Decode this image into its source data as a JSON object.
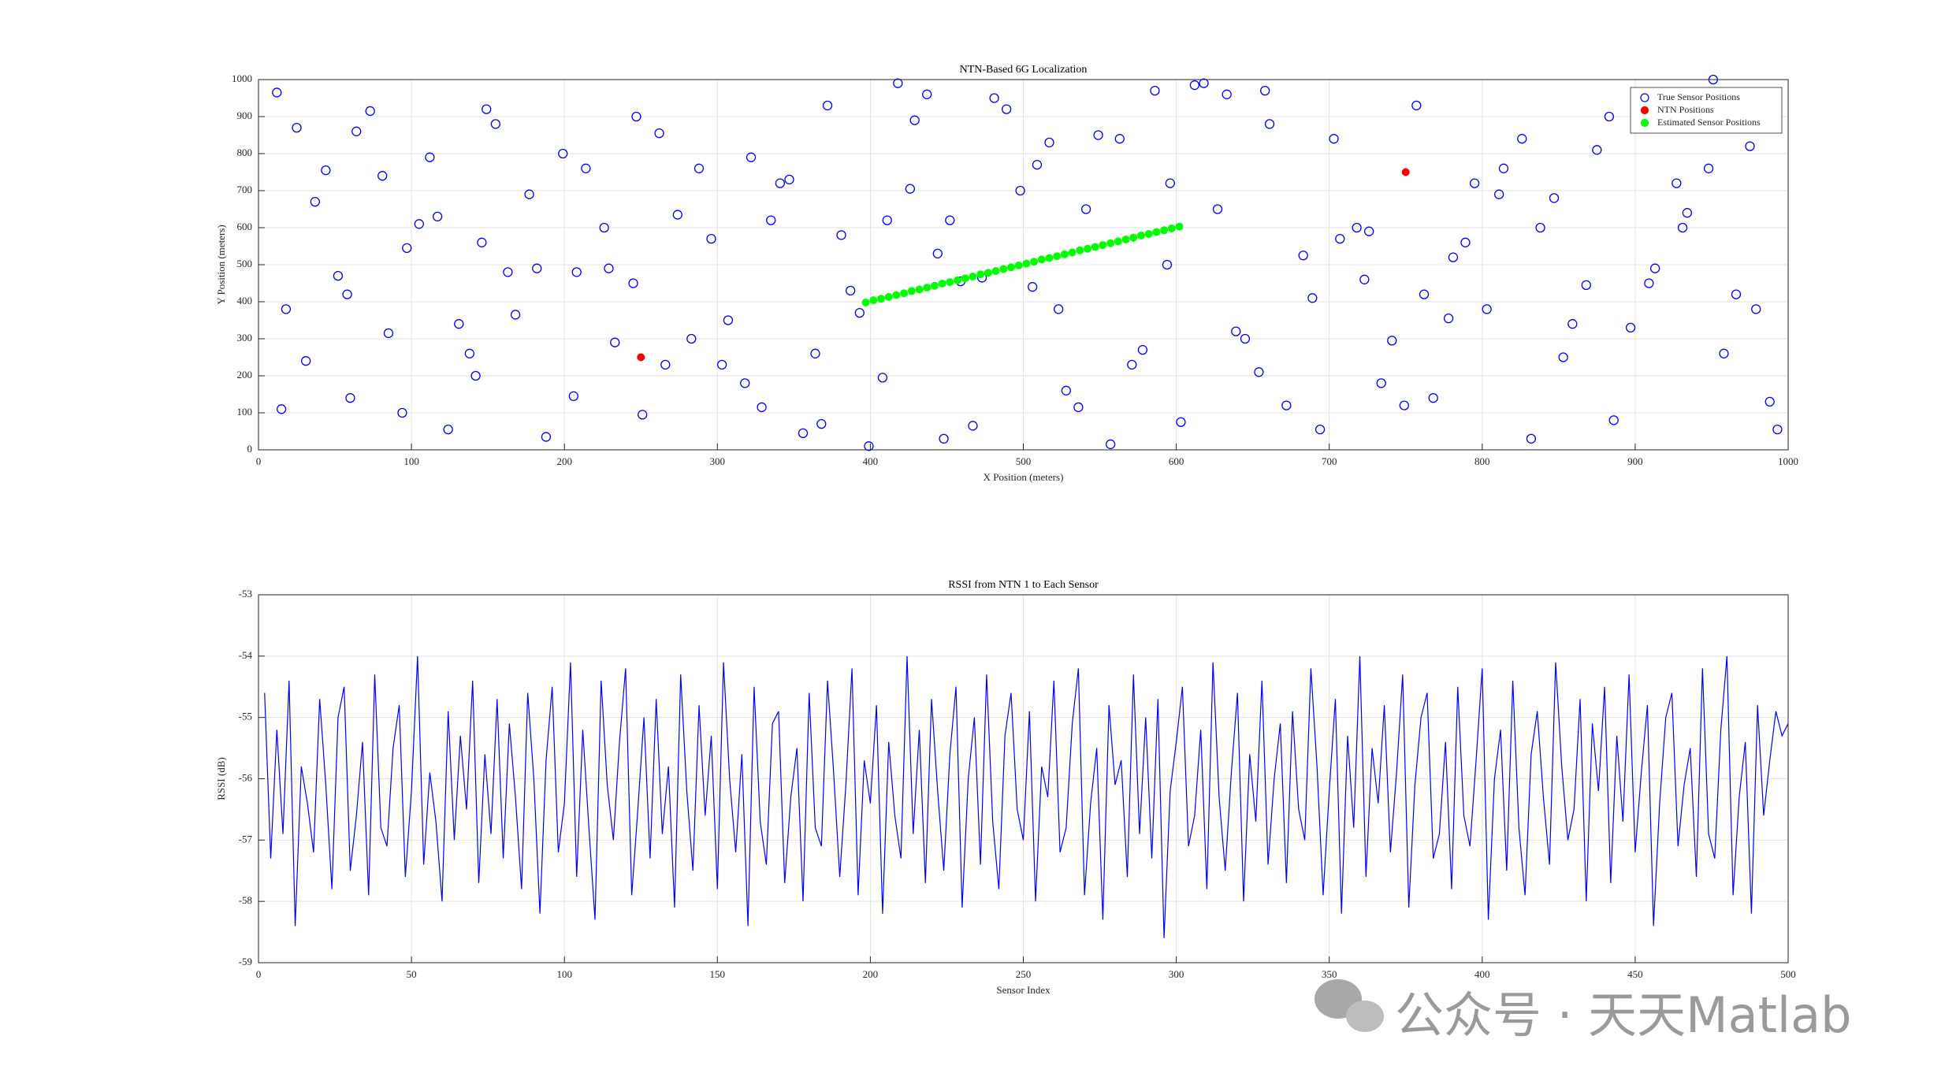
{
  "chart_data": [
    {
      "type": "scatter",
      "title": "NTN-Based 6G Localization",
      "xlabel": "X Position (meters)",
      "ylabel": "Y Position (meters)",
      "xlim": [
        0,
        1000
      ],
      "ylim": [
        0,
        1000
      ],
      "xticks": [
        0,
        100,
        200,
        300,
        400,
        500,
        600,
        700,
        800,
        900,
        1000
      ],
      "yticks": [
        0,
        100,
        200,
        300,
        400,
        500,
        600,
        700,
        800,
        900,
        1000
      ],
      "grid": true,
      "legend": "northeast",
      "series": [
        {
          "name": "True Sensor Positions",
          "color": "#0000ff",
          "marker": "open",
          "x": [
            12,
            18,
            25,
            31,
            44,
            52,
            60,
            73,
            85,
            97,
            105,
            112,
            124,
            138,
            146,
            155,
            163,
            177,
            188,
            199,
            208,
            214,
            226,
            233,
            245,
            251,
            262,
            274,
            283,
            296,
            303,
            318,
            322,
            335,
            341,
            356,
            364,
            372,
            381,
            393,
            399,
            411,
            418,
            426,
            437,
            448,
            452,
            467,
            473,
            489,
            498,
            506,
            517,
            523,
            536,
            541,
            557,
            563,
            571,
            586,
            594,
            603,
            612,
            627,
            633,
            645,
            654,
            661,
            672,
            689,
            694,
            703,
            718,
            726,
            734,
            749,
            757,
            762,
            778,
            781,
            795,
            803,
            811,
            826,
            832,
            847,
            853,
            868,
            875,
            883,
            897,
            904,
            913,
            927,
            931,
            948,
            951,
            966,
            975,
            988,
            15,
            37,
            58,
            81,
            94,
            117,
            131,
            149,
            168,
            182,
            206,
            229,
            247,
            266,
            288,
            307,
            329,
            347,
            368,
            387,
            408,
            429,
            444,
            459,
            481,
            509,
            528,
            549,
            578,
            596,
            618,
            639,
            658,
            683,
            707,
            723,
            741,
            768,
            789,
            814,
            838,
            859,
            886,
            909,
            934,
            958,
            979,
            993,
            64,
            142
          ],
          "values": [
            965,
            380,
            870,
            240,
            755,
            470,
            140,
            915,
            315,
            545,
            610,
            790,
            55,
            260,
            560,
            880,
            480,
            690,
            35,
            800,
            480,
            760,
            600,
            290,
            450,
            95,
            855,
            635,
            300,
            570,
            230,
            180,
            790,
            620,
            720,
            45,
            260,
            930,
            580,
            370,
            10,
            620,
            990,
            705,
            960,
            30,
            620,
            65,
            465,
            920,
            700,
            440,
            830,
            380,
            115,
            650,
            15,
            840,
            230,
            970,
            500,
            75,
            985,
            650,
            960,
            300,
            210,
            880,
            120,
            410,
            55,
            840,
            600,
            590,
            180,
            120,
            930,
            420,
            355,
            520,
            720,
            380,
            690,
            840,
            30,
            680,
            250,
            445,
            810,
            900,
            330,
            940,
            490,
            720,
            600,
            760,
            1000,
            420,
            820,
            130,
            110,
            670,
            420,
            740,
            100,
            630,
            340,
            920,
            365,
            490,
            145,
            490,
            900,
            230,
            760,
            350,
            115,
            730,
            70,
            430,
            195,
            890,
            530,
            455,
            950,
            770,
            160,
            850,
            270,
            720,
            990,
            320,
            970,
            525,
            570,
            460,
            295,
            140,
            560,
            760,
            600,
            340,
            80,
            450,
            640,
            260,
            380,
            55,
            860,
            200
          ]
        },
        {
          "name": "NTN Positions",
          "color": "#ff0000",
          "marker": "filled",
          "x": [
            250,
            750
          ],
          "values": [
            250,
            750
          ]
        },
        {
          "name": "Estimated Sensor Positions",
          "color": "#00ff00",
          "marker": "filled",
          "x": [
            397,
            402,
            407,
            412,
            417,
            422,
            427,
            432,
            437,
            442,
            447,
            452,
            457,
            462,
            467,
            472,
            477,
            482,
            487,
            492,
            497,
            502,
            507,
            512,
            517,
            522,
            527,
            532,
            537,
            542,
            547,
            552,
            557,
            562,
            567,
            572,
            577,
            582,
            587,
            592,
            597,
            602
          ],
          "values": [
            398,
            404,
            408,
            413,
            418,
            423,
            429,
            433,
            438,
            443,
            449,
            453,
            458,
            463,
            468,
            474,
            478,
            483,
            488,
            493,
            498,
            503,
            508,
            514,
            518,
            523,
            528,
            533,
            539,
            543,
            548,
            553,
            558,
            563,
            568,
            573,
            579,
            583,
            588,
            593,
            598,
            603
          ]
        }
      ]
    },
    {
      "type": "line",
      "title": "RSSI from NTN 1 to Each Sensor",
      "xlabel": "Sensor Index",
      "ylabel": "RSSI (dB)",
      "xlim": [
        0,
        500
      ],
      "ylim": [
        -59,
        -53
      ],
      "xticks": [
        0,
        50,
        100,
        150,
        200,
        250,
        300,
        350,
        400,
        450,
        500
      ],
      "yticks": [
        -59,
        -58,
        -57,
        -56,
        -55,
        -54,
        -53
      ],
      "grid": true,
      "x": [
        2,
        4,
        6,
        8,
        10,
        12,
        14,
        16,
        18,
        20,
        22,
        24,
        26,
        28,
        30,
        32,
        34,
        36,
        38,
        40,
        42,
        44,
        46,
        48,
        50,
        52,
        54,
        56,
        58,
        60,
        62,
        64,
        66,
        68,
        70,
        72,
        74,
        76,
        78,
        80,
        82,
        84,
        86,
        88,
        90,
        92,
        94,
        96,
        98,
        100,
        102,
        104,
        106,
        108,
        110,
        112,
        114,
        116,
        118,
        120,
        122,
        124,
        126,
        128,
        130,
        132,
        134,
        136,
        138,
        140,
        142,
        144,
        146,
        148,
        150,
        152,
        154,
        156,
        158,
        160,
        162,
        164,
        166,
        168,
        170,
        172,
        174,
        176,
        178,
        180,
        182,
        184,
        186,
        188,
        190,
        192,
        194,
        196,
        198,
        200,
        202,
        204,
        206,
        208,
        210,
        212,
        214,
        216,
        218,
        220,
        222,
        224,
        226,
        228,
        230,
        232,
        234,
        236,
        238,
        240,
        242,
        244,
        246,
        248,
        250,
        252,
        254,
        256,
        258,
        260,
        262,
        264,
        266,
        268,
        270,
        272,
        274,
        276,
        278,
        280,
        282,
        284,
        286,
        288,
        290,
        292,
        294,
        296,
        298,
        300,
        302,
        304,
        306,
        308,
        310,
        312,
        314,
        316,
        318,
        320,
        322,
        324,
        326,
        328,
        330,
        332,
        334,
        336,
        338,
        340,
        342,
        344,
        346,
        348,
        350,
        352,
        354,
        356,
        358,
        360,
        362,
        364,
        366,
        368,
        370,
        372,
        374,
        376,
        378,
        380,
        382,
        384,
        386,
        388,
        390,
        392,
        394,
        396,
        398,
        400,
        402,
        404,
        406,
        408,
        410,
        412,
        414,
        416,
        418,
        420,
        422,
        424,
        426,
        428,
        430,
        432,
        434,
        436,
        438,
        440,
        442,
        444,
        446,
        448,
        450,
        452,
        454,
        456,
        458,
        460,
        462,
        464,
        466,
        468,
        470,
        472,
        474,
        476,
        478,
        480,
        482,
        484,
        486,
        488,
        490,
        492,
        494,
        496,
        498,
        500
      ],
      "series": [
        {
          "name": "RSSI",
          "color": "#0000ff",
          "values": [
            -54.6,
            -57.3,
            -55.2,
            -56.9,
            -54.4,
            -58.4,
            -55.8,
            -56.4,
            -57.2,
            -54.7,
            -56.1,
            -57.8,
            -55.0,
            -54.5,
            -57.5,
            -56.6,
            -55.4,
            -57.9,
            -54.3,
            -56.8,
            -57.1,
            -55.5,
            -54.8,
            -57.6,
            -56.2,
            -54.0,
            -57.4,
            -55.9,
            -56.7,
            -58.0,
            -54.9,
            -57.0,
            -55.3,
            -56.5,
            -54.4,
            -57.7,
            -55.6,
            -56.9,
            -54.7,
            -57.3,
            -55.1,
            -56.3,
            -57.8,
            -54.6,
            -56.0,
            -58.2,
            -55.7,
            -54.5,
            -57.2,
            -56.4,
            -54.1,
            -57.6,
            -55.2,
            -56.8,
            -58.3,
            -54.4,
            -56.1,
            -57.0,
            -55.4,
            -54.2,
            -57.9,
            -56.5,
            -55.0,
            -57.3,
            -54.7,
            -56.9,
            -55.8,
            -58.1,
            -54.3,
            -56.2,
            -57.5,
            -54.8,
            -56.6,
            -55.3,
            -57.8,
            -54.1,
            -56.0,
            -57.2,
            -55.6,
            -58.4,
            -54.5,
            -56.7,
            -57.4,
            -55.1,
            -54.9,
            -57.7,
            -56.3,
            -55.5,
            -58.0,
            -54.6,
            -56.8,
            -57.1,
            -54.4,
            -55.9,
            -57.6,
            -56.1,
            -54.2,
            -57.9,
            -55.7,
            -56.4,
            -54.8,
            -58.2,
            -55.4,
            -56.6,
            -57.3,
            -54.0,
            -56.9,
            -55.2,
            -57.7,
            -54.7,
            -56.2,
            -57.5,
            -55.6,
            -54.5,
            -58.1,
            -56.0,
            -55.0,
            -57.4,
            -54.3,
            -56.7,
            -57.8,
            -55.3,
            -54.6,
            -56.5,
            -57.0,
            -54.9,
            -58.0,
            -55.8,
            -56.3,
            -54.4,
            -57.2,
            -56.8,
            -55.1,
            -54.2,
            -57.9,
            -56.4,
            -55.5,
            -58.3,
            -54.8,
            -56.1,
            -55.7,
            -57.6,
            -54.3,
            -56.9,
            -55.0,
            -57.3,
            -54.7,
            -58.6,
            -56.2,
            -55.4,
            -54.5,
            -57.1,
            -56.6,
            -55.2,
            -57.8,
            -54.1,
            -56.3,
            -57.5,
            -55.9,
            -54.6,
            -58.0,
            -55.6,
            -56.7,
            -54.4,
            -57.4,
            -56.0,
            -55.1,
            -57.7,
            -54.9,
            -56.5,
            -57.0,
            -54.2,
            -55.8,
            -57.9,
            -56.2,
            -54.7,
            -58.2,
            -55.3,
            -56.8,
            -54.0,
            -57.6,
            -55.5,
            -56.4,
            -54.8,
            -57.2,
            -55.9,
            -54.3,
            -58.1,
            -56.1,
            -55.0,
            -54.6,
            -57.3,
            -56.9,
            -55.4,
            -57.8,
            -54.5,
            -56.6,
            -57.1,
            -55.7,
            -54.2,
            -58.3,
            -56.0,
            -55.2,
            -57.5,
            -54.4,
            -56.8,
            -57.9,
            -55.6,
            -54.9,
            -56.3,
            -57.4,
            -54.1,
            -55.8,
            -57.0,
            -56.5,
            -54.7,
            -58.0,
            -55.1,
            -56.2,
            -54.5,
            -57.7,
            -55.3,
            -56.7,
            -54.3,
            -57.2,
            -55.9,
            -54.8,
            -58.4,
            -56.4,
            -55.0,
            -54.6,
            -57.1,
            -56.1,
            -55.5,
            -57.6,
            -54.2,
            -56.9,
            -57.3,
            -55.2,
            -54.0,
            -57.9,
            -56.3,
            -55.4,
            -58.2,
            -54.8,
            -56.6,
            -55.7,
            -54.9,
            -55.3,
            -55.1
          ]
        }
      ]
    }
  ],
  "watermark": "公众号 · 天天Matlab"
}
